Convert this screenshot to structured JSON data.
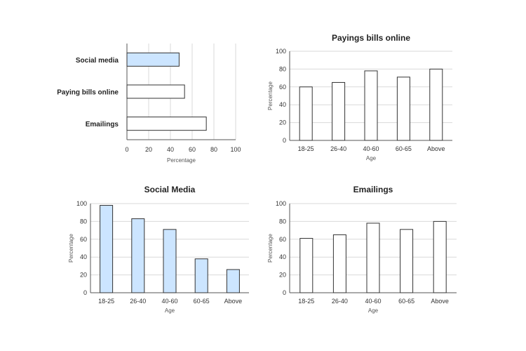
{
  "chart_data": [
    {
      "type": "bar",
      "orientation": "horizontal",
      "title": "",
      "categories": [
        "Social media",
        "Paying bills online",
        "Emailings"
      ],
      "values": [
        48,
        53,
        73
      ],
      "colors": [
        "#cce5ff",
        "#ffffff",
        "#ffffff"
      ],
      "xlabel": "Percentage",
      "ylabel": "",
      "xlim": [
        0,
        100
      ],
      "xticks": [
        0,
        20,
        40,
        60,
        80,
        100
      ],
      "grid": true,
      "legend": "none"
    },
    {
      "type": "bar",
      "title": "Payings bills online",
      "categories": [
        "18-25",
        "26-40",
        "40-60",
        "60-65",
        "Above"
      ],
      "values": [
        60,
        65,
        78,
        71,
        80
      ],
      "bar_color": "#ffffff",
      "xlabel": "Age",
      "ylabel": "Percentage",
      "ylim": [
        0,
        100
      ],
      "yticks": [
        0,
        20,
        40,
        60,
        80,
        100
      ],
      "grid": true,
      "legend": "none"
    },
    {
      "type": "bar",
      "title": "Social Media",
      "categories": [
        "18-25",
        "26-40",
        "40-60",
        "60-65",
        "Above"
      ],
      "values": [
        98,
        83,
        71,
        38,
        26
      ],
      "bar_color": "#cce5ff",
      "xlabel": "Age",
      "ylabel": "Percentage",
      "ylim": [
        0,
        100
      ],
      "yticks": [
        0,
        20,
        40,
        60,
        80,
        100
      ],
      "grid": true,
      "legend": "none"
    },
    {
      "type": "bar",
      "title": "Emailings",
      "categories": [
        "18-25",
        "26-40",
        "40-60",
        "60-65",
        "Above"
      ],
      "values": [
        61,
        65,
        78,
        71,
        80
      ],
      "bar_color": "#ffffff",
      "xlabel": "Age",
      "ylabel": "Percentage",
      "ylim": [
        0,
        100
      ],
      "yticks": [
        0,
        20,
        40,
        60,
        80,
        100
      ],
      "grid": true,
      "legend": "none"
    }
  ],
  "colors": {
    "bar_stroke": "#333333",
    "grid": "#d9d9d9",
    "axis": "#555555"
  }
}
